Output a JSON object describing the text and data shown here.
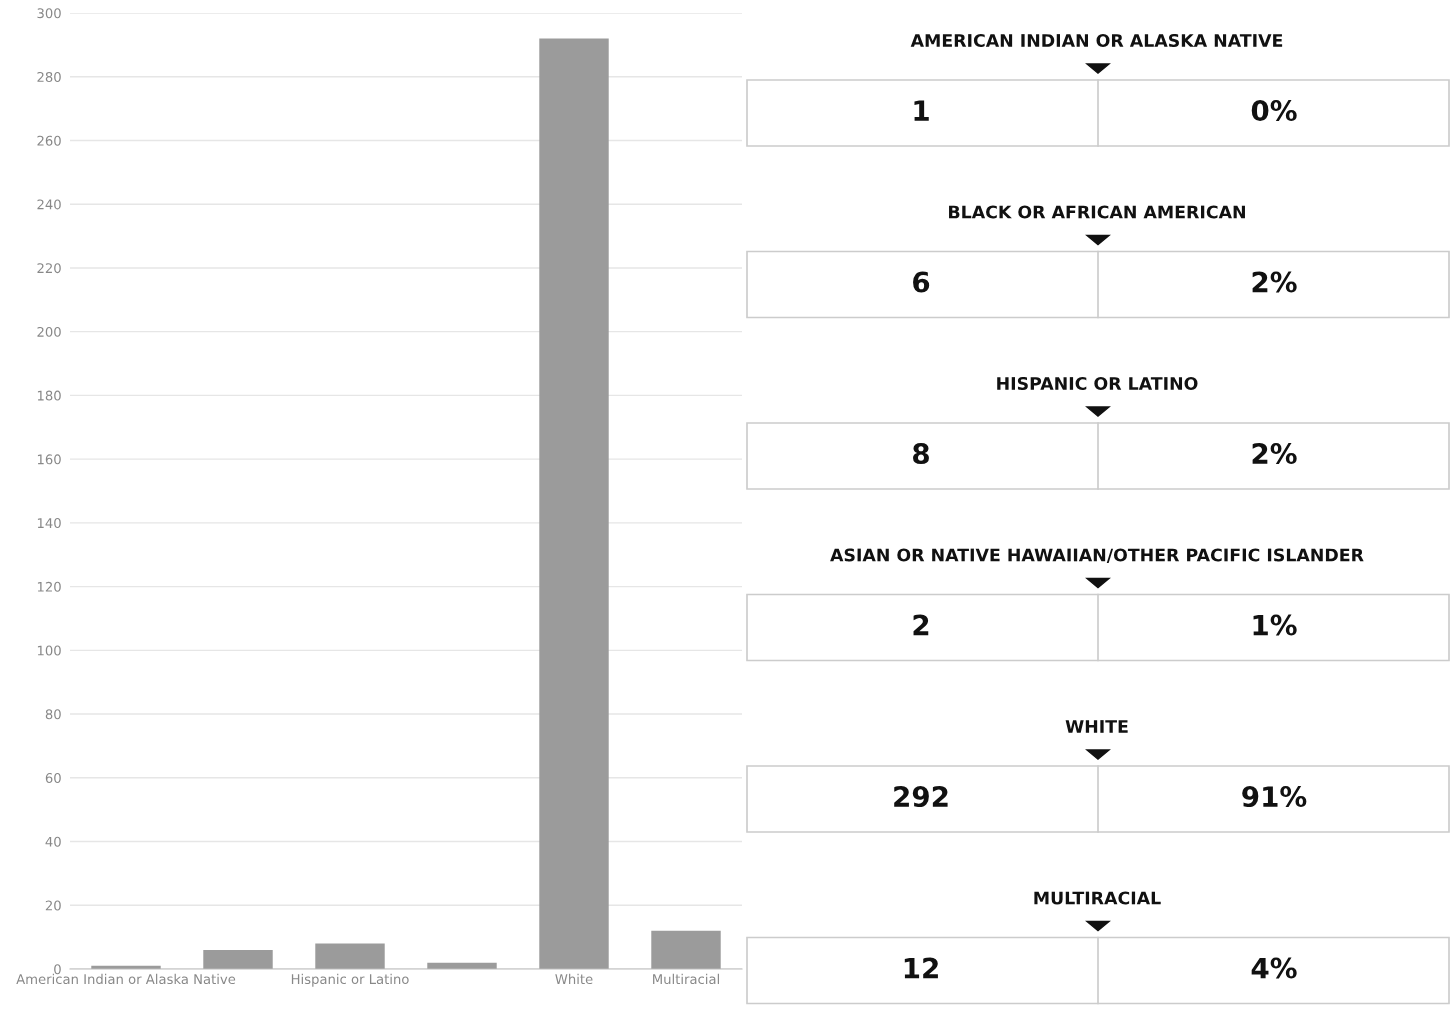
{
  "chart_data": [
    {
      "type": "bar",
      "categories": [
        "American Indian or Alaska Native",
        null,
        "Hispanic or Latino",
        null,
        "White",
        "Multiracial"
      ],
      "values": [
        1,
        6,
        8,
        2,
        292,
        12
      ],
      "color": "#9b9b9b",
      "ylim": [
        0,
        300
      ],
      "yticks": [
        0,
        20,
        40,
        60,
        80,
        100,
        120,
        140,
        160,
        180,
        200,
        220,
        240,
        260,
        280,
        300
      ],
      "grid": "y"
    },
    {
      "type": "other",
      "categories": [
        "AMERICAN INDIAN OR ALASKA NATIVE",
        "BLACK OR AFRICAN AMERICAN",
        "HISPANIC OR LATINO",
        "ASIAN OR NATIVE HAWAIIAN/OTHER PACIFIC ISLANDER",
        "WHITE",
        "MULTIRACIAL"
      ],
      "series": [
        {
          "values": [
            1,
            6,
            8,
            2,
            292,
            12
          ]
        },
        {
          "values": [
            0,
            2,
            2,
            1,
            91,
            4
          ],
          "value_labels": [
            "0%",
            "2%",
            "2%",
            "1%",
            "91%",
            "4%"
          ]
        }
      ],
      "data_labels": true
    }
  ]
}
